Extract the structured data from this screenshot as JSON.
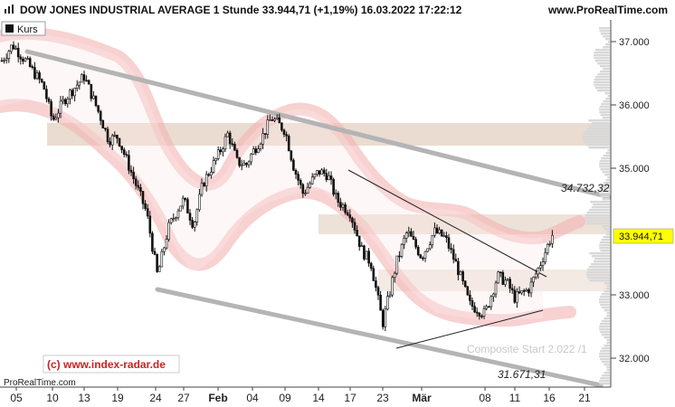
{
  "header": {
    "title": "DOW JONES INDUSTRIAL AVERAGE 1 Stunde 33.944,71 (+1,19%) 16.03.2022 17:22:12",
    "site": "www.ProRealTime.com"
  },
  "footer": {
    "source": "ProRealTime.com",
    "copyright": "(c) www.index-radar.de",
    "watermark": "Composite Start 2.022 /1"
  },
  "colors": {
    "candle": "#111111",
    "channel": "#b4b4b4",
    "band": "#f5b3b3",
    "zone": "#e6d6c8",
    "price_badge": "#ffff00",
    "copyright": "#d02020"
  },
  "chart_data": {
    "type": "candlestick",
    "legend": [
      "Kurs"
    ],
    "legend_position": "top-left",
    "x_ticks": [
      "05",
      "10",
      "13",
      "19",
      "24",
      "27",
      "Feb",
      "04",
      "09",
      "14",
      "17",
      "23",
      "Mär",
      "08",
      "11",
      "16",
      "21"
    ],
    "y_ticks": [
      37000,
      36000,
      35000,
      33000,
      32000
    ],
    "y_tick_labels": [
      "37.000",
      "36.000",
      "35.000",
      "33.000",
      "32.000"
    ],
    "y_range": [
      31700,
      37400
    ],
    "last_price": 33944.71,
    "last_price_label": "33.944,71",
    "annotations": [
      {
        "text": "34.732,32",
        "value": 34732.32
      },
      {
        "text": "31.671,31",
        "value": 31671.31
      }
    ],
    "path": [
      [
        "05",
        36700
      ],
      [
        "06",
        36950
      ],
      [
        "07",
        36700
      ],
      [
        "10",
        36300
      ],
      [
        "11",
        35750
      ],
      [
        "12",
        36100
      ],
      [
        "13",
        36450
      ],
      [
        "14",
        35850
      ],
      [
        "18",
        35450
      ],
      [
        "19",
        35500
      ],
      [
        "20",
        34750
      ],
      [
        "21",
        34300
      ],
      [
        "24",
        33300
      ],
      [
        "25",
        34050
      ],
      [
        "26",
        34400
      ],
      [
        "27",
        34500
      ],
      [
        "28",
        34100
      ],
      [
        "31",
        34750
      ],
      [
        "Feb",
        35200
      ],
      [
        "02",
        35550
      ],
      [
        "03",
        35100
      ],
      [
        "04",
        35050
      ],
      [
        "07",
        35250
      ],
      [
        "08",
        35500
      ],
      [
        "09",
        35800
      ],
      [
        "10",
        35600
      ],
      [
        "11",
        35000
      ],
      [
        "14",
        34600
      ],
      [
        "15",
        34950
      ],
      [
        "16",
        34900
      ],
      [
        "17",
        34500
      ],
      [
        "18",
        34300
      ],
      [
        "22",
        33700
      ],
      [
        "23",
        33500
      ],
      [
        "24",
        32550
      ],
      [
        "25",
        33500
      ],
      [
        "28",
        34000
      ],
      [
        "Mär",
        33600
      ],
      [
        "02",
        34000
      ],
      [
        "03",
        33900
      ],
      [
        "04",
        33450
      ],
      [
        "07",
        32850
      ],
      [
        "08",
        32700
      ],
      [
        "09",
        33300
      ],
      [
        "10",
        33200
      ],
      [
        "11",
        32950
      ],
      [
        "14",
        33100
      ],
      [
        "15",
        33450
      ],
      [
        "16",
        33944.71
      ]
    ]
  }
}
